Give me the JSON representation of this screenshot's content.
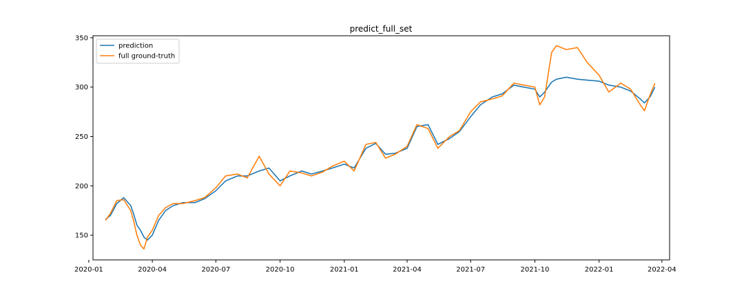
{
  "chart_data": {
    "type": "line",
    "title": "predict_full_set",
    "xlabel": "",
    "ylabel": "",
    "x_ticks": [
      "2020-01",
      "2020-04",
      "2020-07",
      "2020-10",
      "2021-01",
      "2021-04",
      "2021-07",
      "2021-10",
      "2022-01",
      "2022-04"
    ],
    "y_ticks": [
      150,
      200,
      250,
      300,
      350
    ],
    "xlim": [
      "2020-01-07",
      "2022-04-12"
    ],
    "ylim": [
      125,
      352
    ],
    "grid": false,
    "legend_position": "top-left",
    "colors": {
      "prediction": "#1f77b4",
      "full ground-truth": "#ff7f0e"
    },
    "series": [
      {
        "name": "prediction",
        "x": [
          "2020-01-25",
          "2020-02-01",
          "2020-02-10",
          "2020-02-20",
          "2020-03-01",
          "2020-03-05",
          "2020-03-10",
          "2020-03-15",
          "2020-03-20",
          "2020-03-25",
          "2020-04-01",
          "2020-04-10",
          "2020-04-20",
          "2020-05-01",
          "2020-05-15",
          "2020-06-01",
          "2020-06-15",
          "2020-07-01",
          "2020-07-15",
          "2020-08-01",
          "2020-08-15",
          "2020-09-01",
          "2020-09-15",
          "2020-10-01",
          "2020-10-15",
          "2020-11-01",
          "2020-11-15",
          "2020-12-01",
          "2020-12-15",
          "2021-01-01",
          "2021-01-15",
          "2021-02-01",
          "2021-02-15",
          "2021-03-01",
          "2021-03-15",
          "2021-04-01",
          "2021-04-15",
          "2021-05-01",
          "2021-05-15",
          "2021-06-01",
          "2021-06-15",
          "2021-07-01",
          "2021-07-15",
          "2021-08-01",
          "2021-08-15",
          "2021-09-01",
          "2021-09-15",
          "2021-10-01",
          "2021-10-08",
          "2021-10-15",
          "2021-10-25",
          "2021-11-01",
          "2021-11-15",
          "2021-12-01",
          "2021-12-15",
          "2022-01-01",
          "2022-01-15",
          "2022-02-01",
          "2022-02-15",
          "2022-03-01",
          "2022-03-07",
          "2022-03-15",
          "2022-03-22"
        ],
        "values": [
          166,
          170,
          182,
          188,
          180,
          172,
          160,
          155,
          148,
          145,
          150,
          165,
          175,
          180,
          183,
          183,
          187,
          195,
          205,
          210,
          210,
          215,
          218,
          205,
          210,
          215,
          212,
          215,
          218,
          222,
          218,
          238,
          243,
          232,
          233,
          238,
          260,
          262,
          242,
          248,
          255,
          270,
          282,
          290,
          293,
          302,
          300,
          298,
          290,
          295,
          305,
          308,
          310,
          308,
          307,
          306,
          302,
          300,
          296,
          288,
          284,
          290,
          300
        ]
      },
      {
        "name": "full ground-truth",
        "x": [
          "2020-01-25",
          "2020-02-01",
          "2020-02-10",
          "2020-02-20",
          "2020-03-01",
          "2020-03-05",
          "2020-03-10",
          "2020-03-15",
          "2020-03-20",
          "2020-03-25",
          "2020-04-01",
          "2020-04-10",
          "2020-04-20",
          "2020-05-01",
          "2020-05-15",
          "2020-06-01",
          "2020-06-15",
          "2020-07-01",
          "2020-07-15",
          "2020-08-01",
          "2020-08-15",
          "2020-09-01",
          "2020-09-15",
          "2020-10-01",
          "2020-10-15",
          "2020-11-01",
          "2020-11-15",
          "2020-12-01",
          "2020-12-15",
          "2021-01-01",
          "2021-01-15",
          "2021-02-01",
          "2021-02-15",
          "2021-03-01",
          "2021-03-15",
          "2021-04-01",
          "2021-04-15",
          "2021-05-01",
          "2021-05-15",
          "2021-06-01",
          "2021-06-15",
          "2021-07-01",
          "2021-07-15",
          "2021-08-01",
          "2021-08-15",
          "2021-09-01",
          "2021-09-15",
          "2021-10-01",
          "2021-10-08",
          "2021-10-15",
          "2021-10-25",
          "2021-11-01",
          "2021-11-15",
          "2021-12-01",
          "2021-12-15",
          "2022-01-01",
          "2022-01-15",
          "2022-02-01",
          "2022-02-15",
          "2022-03-01",
          "2022-03-07",
          "2022-03-15",
          "2022-03-22"
        ],
        "values": [
          165,
          172,
          185,
          186,
          175,
          165,
          150,
          140,
          136,
          148,
          155,
          170,
          178,
          182,
          182,
          185,
          188,
          198,
          210,
          212,
          208,
          230,
          212,
          200,
          215,
          213,
          210,
          214,
          220,
          225,
          215,
          242,
          244,
          228,
          232,
          240,
          262,
          258,
          238,
          250,
          256,
          275,
          285,
          288,
          291,
          304,
          302,
          300,
          282,
          290,
          335,
          342,
          338,
          340,
          325,
          312,
          295,
          304,
          298,
          282,
          276,
          292,
          304
        ]
      }
    ]
  }
}
